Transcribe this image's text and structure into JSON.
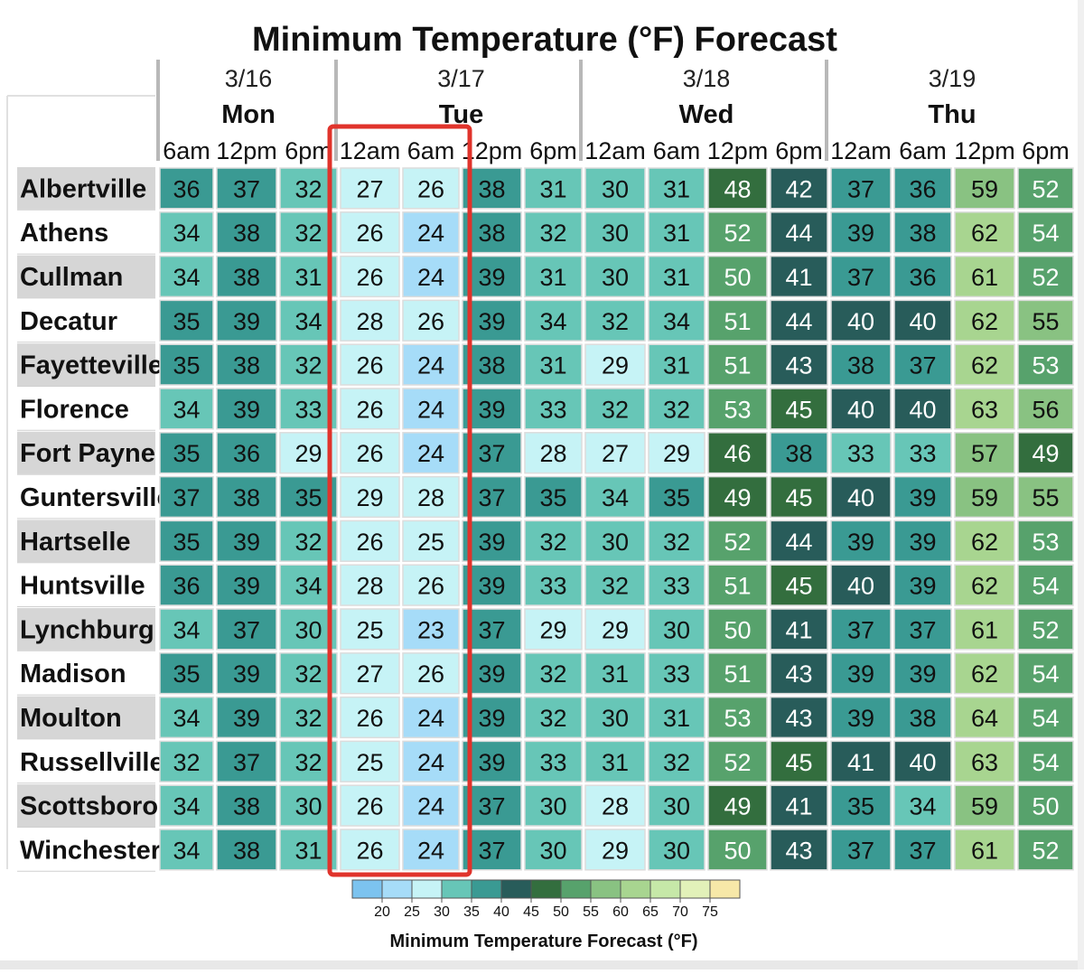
{
  "chart_data": {
    "type": "heatmap",
    "title": "Minimum Temperature (°F) Forecast",
    "days": [
      {
        "date": "3/16",
        "day": "Mon",
        "times": [
          "6am",
          "12pm",
          "6pm"
        ]
      },
      {
        "date": "3/17",
        "day": "Tue",
        "times": [
          "12am",
          "6am",
          "12pm",
          "6pm"
        ]
      },
      {
        "date": "3/18",
        "day": "Wed",
        "times": [
          "12am",
          "6am",
          "12pm",
          "6pm"
        ]
      },
      {
        "date": "3/19",
        "day": "Thu",
        "times": [
          "12am",
          "6am",
          "12pm",
          "6pm"
        ]
      }
    ],
    "rows": [
      "Albertville",
      "Athens",
      "Cullman",
      "Decatur",
      "Fayetteville",
      "Florence",
      "Fort Payne",
      "Guntersville",
      "Hartselle",
      "Huntsville",
      "Lynchburg",
      "Madison",
      "Moulton",
      "Russellville",
      "Scottsboro",
      "Winchester"
    ],
    "values": [
      [
        36,
        37,
        32,
        27,
        26,
        38,
        31,
        30,
        31,
        48,
        42,
        37,
        36,
        59,
        52
      ],
      [
        34,
        38,
        32,
        26,
        24,
        38,
        32,
        30,
        31,
        52,
        44,
        39,
        38,
        62,
        54
      ],
      [
        34,
        38,
        31,
        26,
        24,
        39,
        31,
        30,
        31,
        50,
        41,
        37,
        36,
        61,
        52
      ],
      [
        35,
        39,
        34,
        28,
        26,
        39,
        34,
        32,
        34,
        51,
        44,
        40,
        40,
        62,
        55
      ],
      [
        35,
        38,
        32,
        26,
        24,
        38,
        31,
        29,
        31,
        51,
        43,
        38,
        37,
        62,
        53
      ],
      [
        34,
        39,
        33,
        26,
        24,
        39,
        33,
        32,
        32,
        53,
        45,
        40,
        40,
        63,
        56
      ],
      [
        35,
        36,
        29,
        26,
        24,
        37,
        28,
        27,
        29,
        46,
        38,
        33,
        33,
        57,
        49
      ],
      [
        37,
        38,
        35,
        29,
        28,
        37,
        35,
        34,
        35,
        49,
        45,
        40,
        39,
        59,
        55
      ],
      [
        35,
        39,
        32,
        26,
        25,
        39,
        32,
        30,
        32,
        52,
        44,
        39,
        39,
        62,
        53
      ],
      [
        36,
        39,
        34,
        28,
        26,
        39,
        33,
        32,
        33,
        51,
        45,
        40,
        39,
        62,
        54
      ],
      [
        34,
        37,
        30,
        25,
        23,
        37,
        29,
        29,
        30,
        50,
        41,
        37,
        37,
        61,
        52
      ],
      [
        35,
        39,
        32,
        27,
        26,
        39,
        32,
        31,
        33,
        51,
        43,
        39,
        39,
        62,
        54
      ],
      [
        34,
        39,
        32,
        26,
        24,
        39,
        32,
        30,
        31,
        53,
        43,
        39,
        38,
        64,
        54
      ],
      [
        32,
        37,
        32,
        25,
        24,
        39,
        33,
        31,
        32,
        52,
        45,
        41,
        40,
        63,
        54
      ],
      [
        34,
        38,
        30,
        26,
        24,
        37,
        30,
        28,
        30,
        49,
        41,
        35,
        34,
        59,
        50
      ],
      [
        34,
        38,
        31,
        26,
        24,
        37,
        30,
        29,
        30,
        50,
        43,
        37,
        37,
        61,
        52
      ]
    ],
    "highlight": {
      "day": "Tue",
      "times": [
        "12am",
        "6am"
      ],
      "color": "#e0332b"
    },
    "legend": {
      "title": "Minimum Temperature Forecast (°F)",
      "ticks": [
        20,
        25,
        30,
        35,
        40,
        45,
        50,
        55,
        60,
        65,
        70,
        75
      ],
      "bins": [
        {
          "from": 15,
          "to": 20,
          "color": "#7cc3ef"
        },
        {
          "from": 20,
          "to": 25,
          "color": "#a6dcf8"
        },
        {
          "from": 25,
          "to": 30,
          "color": "#c6f3f6"
        },
        {
          "from": 30,
          "to": 35,
          "color": "#67c6b7"
        },
        {
          "from": 35,
          "to": 40,
          "color": "#3a9a93"
        },
        {
          "from": 40,
          "to": 45,
          "color": "#285c5a"
        },
        {
          "from": 45,
          "to": 50,
          "color": "#336e3e"
        },
        {
          "from": 50,
          "to": 55,
          "color": "#57a26c"
        },
        {
          "from": 55,
          "to": 60,
          "color": "#89c282"
        },
        {
          "from": 60,
          "to": 65,
          "color": "#a8d590"
        },
        {
          "from": 65,
          "to": 70,
          "color": "#c6e8a8"
        },
        {
          "from": 70,
          "to": 75,
          "color": "#e2f1b9"
        },
        {
          "from": 75,
          "to": 80,
          "color": "#f7e8a8"
        }
      ]
    }
  }
}
